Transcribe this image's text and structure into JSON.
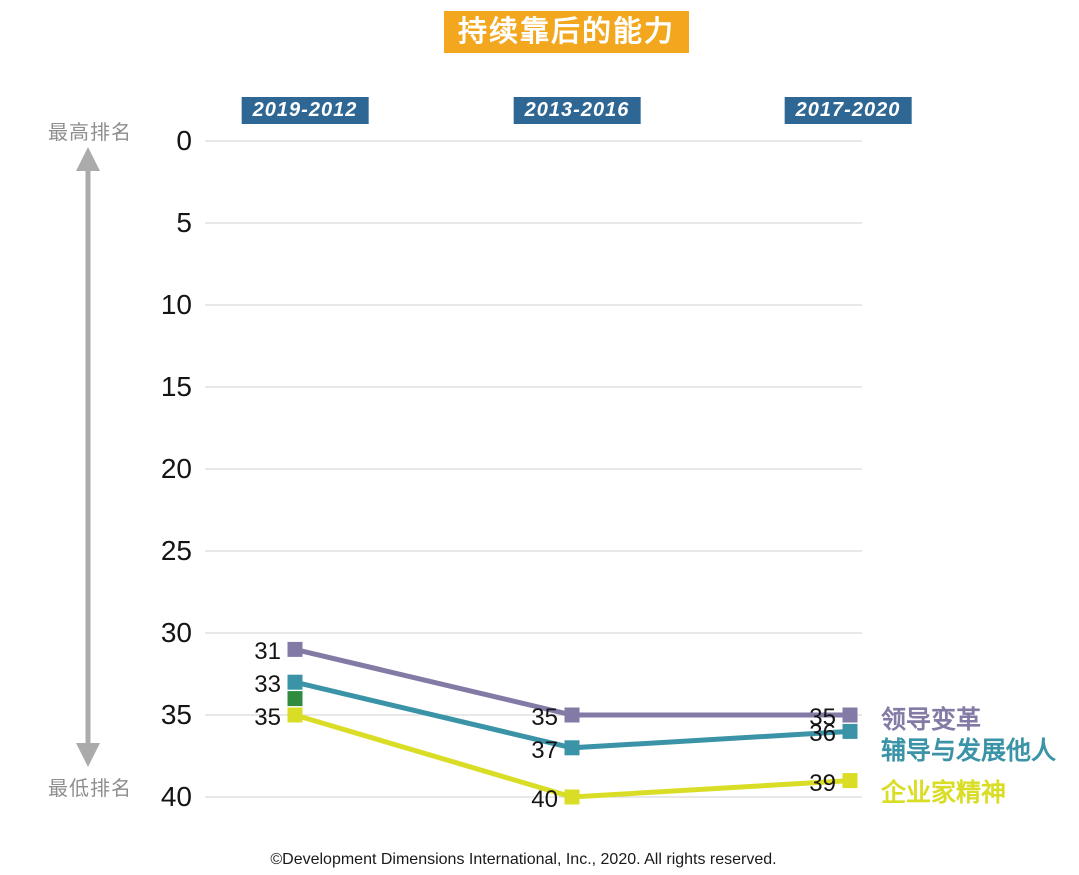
{
  "chart_data": {
    "type": "line",
    "title": "持续靠后的能力",
    "title_bg": "#F3A71E",
    "categories": [
      "2019-2012",
      "2013-2016",
      "2017-2020"
    ],
    "category_chip_bg": "#2E6694",
    "series": [
      {
        "name": "领导变革",
        "color": "#847AA6",
        "values": [
          31,
          35,
          35
        ]
      },
      {
        "name": "辅导与发展他人",
        "color": "#3B93A7",
        "values": [
          33,
          37,
          36
        ]
      },
      {
        "name": "企业家精神",
        "color": "#D9DD25",
        "values": [
          35,
          40,
          39
        ]
      }
    ],
    "isolated_point": {
      "color": "#2E8B3F",
      "category_index": 0,
      "value": 34
    },
    "y_axis": {
      "ticks": [
        0,
        5,
        10,
        15,
        20,
        25,
        30,
        35,
        40
      ],
      "range": [
        0,
        40
      ],
      "inverted": true,
      "top_label": "最高排名",
      "bottom_label": "最低排名"
    },
    "grid": true,
    "gridline_color": "#D9D9D9",
    "arrow_color": "#ABABAB",
    "value_labels_shown": true,
    "legend_position": "right"
  },
  "footer": {
    "copyright": "©Development Dimensions International, Inc., 2020. All rights reserved."
  }
}
